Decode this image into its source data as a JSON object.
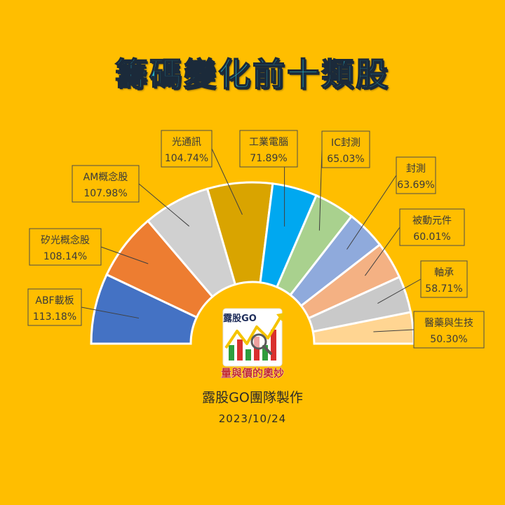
{
  "title": "籌碼變化前十類股",
  "logo": {
    "brand": "露股GO",
    "slogan": "量與價的奧妙"
  },
  "footer": {
    "maker": "露股GO團隊製作",
    "date": "2023/10/24"
  },
  "colors": {
    "background": "#FFBE00",
    "title_fill": "#26B0C4",
    "slices": [
      "#4472C4",
      "#ED7D31",
      "#D0D0D0",
      "#D9A400",
      "#00A8F0",
      "#A9D18E",
      "#8FAADC",
      "#F4B183",
      "#C9C9C9",
      "#FFD592"
    ]
  },
  "chart_data": {
    "type": "pie",
    "subtype": "half-doughnut",
    "title": "籌碼變化前十類股",
    "categories": [
      "ABF載板",
      "矽光概念股",
      "AM概念股",
      "光通訊",
      "工業電腦",
      "IC封測",
      "封測",
      "被動元件",
      "軸承",
      "醫藥與生技"
    ],
    "values": [
      113.18,
      108.14,
      107.98,
      104.74,
      71.89,
      65.03,
      63.69,
      60.01,
      58.71,
      50.3
    ],
    "value_labels": [
      "113.18%",
      "108.14%",
      "107.98%",
      "104.74%",
      "71.89%",
      "65.03%",
      "63.69%",
      "60.01%",
      "58.71%",
      "50.30%"
    ],
    "unit": "%",
    "data_labels": "callout boxes with leader lines"
  }
}
